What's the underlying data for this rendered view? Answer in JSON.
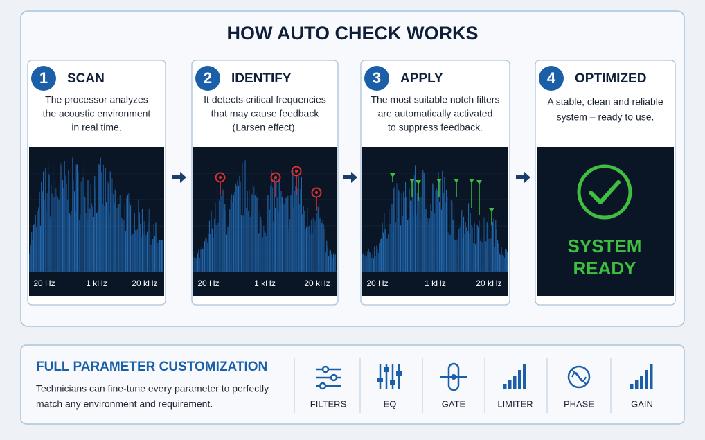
{
  "title": "HOW AUTO CHECK WORKS",
  "steps": [
    {
      "number": "1",
      "title": "SCAN",
      "text": [
        "The processor analyzes",
        "the acoustic environment",
        "in real time."
      ],
      "axis_labels": [
        "20 Hz",
        "1 kHz",
        "20 kHz"
      ]
    },
    {
      "number": "2",
      "title": "IDENTIFY",
      "text": [
        "It detects critical frequencies",
        "that may cause feedback",
        "(Larsen effect)."
      ],
      "axis_labels": [
        "20 Hz",
        "1 kHz",
        "20 kHz"
      ]
    },
    {
      "number": "3",
      "title": "APPLY",
      "text": [
        "The most suitable notch filters",
        "are automatically activated",
        "to suppress feedback."
      ],
      "axis_labels": [
        "20 Hz",
        "1 kHz",
        "20 kHz"
      ]
    },
    {
      "number": "4",
      "title": "OPTIMIZED",
      "text": [
        "A stable, clean and reliable",
        "system – ready to use."
      ],
      "status": [
        "SYSTEM",
        "READY"
      ]
    }
  ],
  "customization": {
    "title": "FULL PARAMETER CUSTOMIZATION",
    "text": [
      "Technicians can fine-tune every parameter to perfectly",
      "match any environment and requirement."
    ],
    "tools": [
      "FILTERS",
      "EQ",
      "GATE",
      "LIMITER",
      "PHASE",
      "GAIN"
    ]
  }
}
